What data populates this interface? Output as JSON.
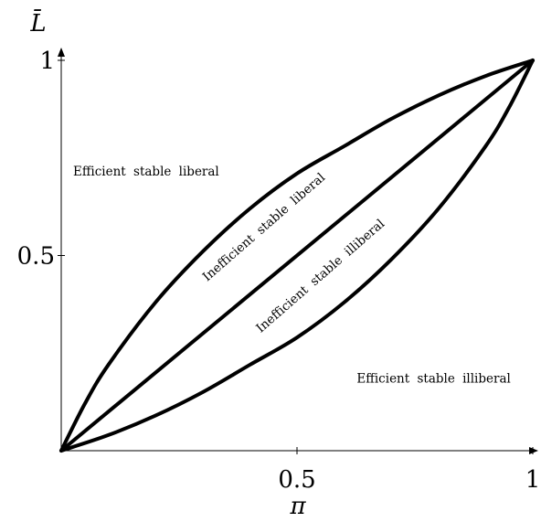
{
  "chart_data": {
    "type": "line",
    "xlabel": "π",
    "ylabel": "L̄",
    "xlim": [
      0,
      1
    ],
    "ylim": [
      0,
      1
    ],
    "x_ticks": [
      {
        "value": 0.5,
        "label": "0.5"
      },
      {
        "value": 1,
        "label": "1"
      }
    ],
    "y_ticks": [
      {
        "value": 0.5,
        "label": "0.5"
      },
      {
        "value": 1,
        "label": "1"
      }
    ],
    "grid": false,
    "series": [
      {
        "x": [
          0,
          0.05,
          0.1,
          0.2,
          0.3,
          0.4,
          0.5,
          0.6,
          0.7,
          0.8,
          0.9,
          1
        ],
        "y": [
          0,
          0.12,
          0.22,
          0.38,
          0.51,
          0.62,
          0.71,
          0.78,
          0.85,
          0.91,
          0.96,
          1
        ]
      },
      {
        "x": [
          0,
          1
        ],
        "y": [
          0,
          1
        ]
      },
      {
        "x": [
          0,
          0.1,
          0.2,
          0.3,
          0.4,
          0.5,
          0.6,
          0.7,
          0.8,
          0.9,
          0.95,
          1
        ],
        "y": [
          0,
          0.04,
          0.09,
          0.15,
          0.22,
          0.29,
          0.38,
          0.49,
          0.62,
          0.78,
          0.88,
          1
        ]
      }
    ],
    "annotations": [
      {
        "text": "Efficient stable liberal",
        "x": 0.18,
        "y": 0.705,
        "angle": 0
      },
      {
        "text": "Inefficient stable liberal",
        "x": 0.435,
        "y": 0.565,
        "angle": -41
      },
      {
        "text": "Inefficient stable illiberal",
        "x": 0.555,
        "y": 0.44,
        "angle": -41
      },
      {
        "text": "Efficient stable illiberal",
        "x": 0.79,
        "y": 0.175,
        "angle": 0
      }
    ]
  }
}
